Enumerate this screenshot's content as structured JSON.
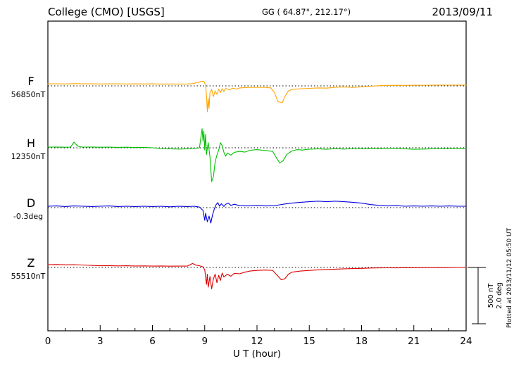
{
  "header": {
    "title": "College (CMO)  [USGS]",
    "coordinates": "GG ( 64.87°, 212.17°)",
    "date": "2013/09/11"
  },
  "axis": {
    "xlabel": "U T (hour)",
    "ticks": [
      0,
      3,
      6,
      9,
      12,
      15,
      18,
      21,
      24
    ],
    "xlim": [
      0,
      24
    ],
    "minor_step": 1
  },
  "scale_bar": {
    "nt_label": "500 nT",
    "deg_label": "2.0 deg",
    "nT": 500,
    "deg": 2.0
  },
  "footer": {
    "plotted_at": "Plotted at 2013/11/12 05:50 UT"
  },
  "chart_data": {
    "type": "line",
    "title": "College (CMO) [USGS] magnetogram 2013/09/11",
    "xlabel": "U T (hour)",
    "xlim": [
      0,
      24
    ],
    "grid": false,
    "legend_position": "left-margin",
    "series": [
      {
        "name": "F",
        "unit": "nT",
        "baseline_label": "56850nT",
        "color": "#FFA500",
        "points": [
          [
            0,
            18
          ],
          [
            0.5,
            19
          ],
          [
            1,
            17
          ],
          [
            1.5,
            20
          ],
          [
            2,
            18
          ],
          [
            2.5,
            19
          ],
          [
            3,
            17
          ],
          [
            3.5,
            18
          ],
          [
            4,
            19
          ],
          [
            4.5,
            17
          ],
          [
            5,
            18
          ],
          [
            5.5,
            17
          ],
          [
            6,
            18
          ],
          [
            6.5,
            16
          ],
          [
            7,
            17
          ],
          [
            7.5,
            16
          ],
          [
            8,
            17
          ],
          [
            8.3,
            20
          ],
          [
            8.6,
            30
          ],
          [
            8.8,
            40
          ],
          [
            8.95,
            42
          ],
          [
            9.05,
            5
          ],
          [
            9.1,
            -80
          ],
          [
            9.15,
            -230
          ],
          [
            9.2,
            -110
          ],
          [
            9.25,
            -200
          ],
          [
            9.3,
            -60
          ],
          [
            9.4,
            -30
          ],
          [
            9.5,
            -95
          ],
          [
            9.6,
            -45
          ],
          [
            9.7,
            -75
          ],
          [
            9.8,
            -30
          ],
          [
            9.9,
            -60
          ],
          [
            10,
            -25
          ],
          [
            10.1,
            -50
          ],
          [
            10.2,
            -22
          ],
          [
            10.4,
            -35
          ],
          [
            10.6,
            -20
          ],
          [
            10.8,
            -28
          ],
          [
            11,
            -18
          ],
          [
            11.5,
            -14
          ],
          [
            12,
            -12
          ],
          [
            12.5,
            -14
          ],
          [
            12.8,
            -18
          ],
          [
            13,
            -60
          ],
          [
            13.2,
            -140
          ],
          [
            13.45,
            -150
          ],
          [
            13.6,
            -95
          ],
          [
            13.8,
            -45
          ],
          [
            14,
            -32
          ],
          [
            14.5,
            -26
          ],
          [
            15,
            -22
          ],
          [
            15.5,
            -18
          ],
          [
            16,
            -20
          ],
          [
            16.5,
            -12
          ],
          [
            17,
            -10
          ],
          [
            17.5,
            -14
          ],
          [
            18,
            -8
          ],
          [
            18.5,
            -3
          ],
          [
            19,
            2
          ],
          [
            19.5,
            4
          ],
          [
            20,
            5
          ],
          [
            20.5,
            4
          ],
          [
            21,
            6
          ],
          [
            21.5,
            5
          ],
          [
            22,
            6
          ],
          [
            22.5,
            7
          ],
          [
            23,
            6
          ],
          [
            23.5,
            7
          ],
          [
            24,
            7
          ]
        ]
      },
      {
        "name": "H",
        "unit": "nT",
        "baseline_label": "12350nT",
        "color": "#00C000",
        "points": [
          [
            0,
            6
          ],
          [
            0.5,
            7
          ],
          [
            1,
            5
          ],
          [
            1.3,
            6
          ],
          [
            1.5,
            50
          ],
          [
            1.65,
            25
          ],
          [
            1.8,
            10
          ],
          [
            2,
            6
          ],
          [
            2.5,
            7
          ],
          [
            3,
            5
          ],
          [
            3.5,
            6
          ],
          [
            4,
            4
          ],
          [
            4.5,
            5
          ],
          [
            5,
            3
          ],
          [
            5.5,
            4
          ],
          [
            6,
            0
          ],
          [
            6.5,
            -6
          ],
          [
            7,
            -9
          ],
          [
            7.5,
            -11
          ],
          [
            8,
            -9
          ],
          [
            8.4,
            -6
          ],
          [
            8.7,
            0
          ],
          [
            8.85,
            170
          ],
          [
            8.9,
            60
          ],
          [
            8.95,
            150
          ],
          [
            9,
            -20
          ],
          [
            9.05,
            120
          ],
          [
            9.1,
            -60
          ],
          [
            9.2,
            45
          ],
          [
            9.3,
            -80
          ],
          [
            9.4,
            -300
          ],
          [
            9.5,
            -255
          ],
          [
            9.6,
            -125
          ],
          [
            9.7,
            -65
          ],
          [
            9.8,
            -20
          ],
          [
            9.9,
            45
          ],
          [
            10,
            20
          ],
          [
            10.1,
            -40
          ],
          [
            10.2,
            -75
          ],
          [
            10.3,
            -45
          ],
          [
            10.5,
            -65
          ],
          [
            10.7,
            -40
          ],
          [
            11,
            -32
          ],
          [
            11.3,
            -38
          ],
          [
            11.6,
            -22
          ],
          [
            12,
            -16
          ],
          [
            12.3,
            -22
          ],
          [
            12.6,
            -26
          ],
          [
            12.9,
            -32
          ],
          [
            13.1,
            -85
          ],
          [
            13.3,
            -135
          ],
          [
            13.5,
            -115
          ],
          [
            13.7,
            -60
          ],
          [
            14,
            -28
          ],
          [
            14.3,
            -16
          ],
          [
            14.6,
            -20
          ],
          [
            15,
            -12
          ],
          [
            15.5,
            -9
          ],
          [
            16,
            -13
          ],
          [
            16.5,
            -7
          ],
          [
            17,
            -11
          ],
          [
            17.5,
            -6
          ],
          [
            18,
            -9
          ],
          [
            18.5,
            -5
          ],
          [
            19,
            -7
          ],
          [
            19.5,
            -4
          ],
          [
            20,
            -6
          ],
          [
            20.5,
            -9
          ],
          [
            21,
            -13
          ],
          [
            21.5,
            -11
          ],
          [
            22,
            -9
          ],
          [
            22.5,
            -6
          ],
          [
            23,
            -7
          ],
          [
            23.5,
            -5
          ],
          [
            24,
            -5
          ]
        ]
      },
      {
        "name": "D",
        "unit": "deg",
        "baseline_label": "-0.3deg",
        "color": "#0000DD",
        "points": [
          [
            0,
            0.05
          ],
          [
            0.5,
            0.06
          ],
          [
            1,
            0.04
          ],
          [
            1.5,
            0.06
          ],
          [
            2,
            0.05
          ],
          [
            2.5,
            0.04
          ],
          [
            3,
            0.05
          ],
          [
            3.5,
            0.06
          ],
          [
            4,
            0.04
          ],
          [
            4.5,
            0.05
          ],
          [
            5,
            0.04
          ],
          [
            5.5,
            0.05
          ],
          [
            6,
            0.04
          ],
          [
            6.5,
            0.05
          ],
          [
            7,
            0.03
          ],
          [
            7.5,
            0.05
          ],
          [
            8,
            0.04
          ],
          [
            8.4,
            0.05
          ],
          [
            8.7,
            0.02
          ],
          [
            8.9,
            -0.1
          ],
          [
            9,
            -0.45
          ],
          [
            9.05,
            -0.2
          ],
          [
            9.15,
            -0.5
          ],
          [
            9.25,
            -0.3
          ],
          [
            9.35,
            -0.55
          ],
          [
            9.45,
            -0.25
          ],
          [
            9.55,
            -0.05
          ],
          [
            9.65,
            0.1
          ],
          [
            9.75,
            0.18
          ],
          [
            9.85,
            0.05
          ],
          [
            9.95,
            0.14
          ],
          [
            10.1,
            0.04
          ],
          [
            10.2,
            0.12
          ],
          [
            10.35,
            0.16
          ],
          [
            10.5,
            0.08
          ],
          [
            10.7,
            0.12
          ],
          [
            11,
            0.07
          ],
          [
            11.5,
            0.06
          ],
          [
            12,
            0.08
          ],
          [
            12.5,
            0.06
          ],
          [
            13,
            0.07
          ],
          [
            13.3,
            0.1
          ],
          [
            13.6,
            0.13
          ],
          [
            14,
            0.16
          ],
          [
            14.5,
            0.19
          ],
          [
            15,
            0.21
          ],
          [
            15.5,
            0.23
          ],
          [
            16,
            0.21
          ],
          [
            16.5,
            0.23
          ],
          [
            17,
            0.21
          ],
          [
            17.5,
            0.19
          ],
          [
            18,
            0.16
          ],
          [
            18.5,
            0.11
          ],
          [
            19,
            0.08
          ],
          [
            19.5,
            0.06
          ],
          [
            20,
            0.07
          ],
          [
            20.5,
            0.05
          ],
          [
            21,
            0.06
          ],
          [
            21.5,
            0.05
          ],
          [
            22,
            0.06
          ],
          [
            22.5,
            0.05
          ],
          [
            23,
            0.06
          ],
          [
            23.5,
            0.05
          ],
          [
            24,
            0.05
          ]
        ]
      },
      {
        "name": "Z",
        "unit": "nT",
        "baseline_label": "55510nT",
        "color": "#DD0000",
        "points": [
          [
            0,
            25
          ],
          [
            0.5,
            26
          ],
          [
            1,
            24
          ],
          [
            1.5,
            25
          ],
          [
            2,
            22
          ],
          [
            2.5,
            18
          ],
          [
            3,
            15
          ],
          [
            3.5,
            16
          ],
          [
            4,
            14
          ],
          [
            4.5,
            15
          ],
          [
            5,
            13
          ],
          [
            5.5,
            14
          ],
          [
            6,
            12
          ],
          [
            6.5,
            13
          ],
          [
            7,
            11
          ],
          [
            7.5,
            12
          ],
          [
            8,
            12
          ],
          [
            8.3,
            35
          ],
          [
            8.5,
            20
          ],
          [
            8.7,
            15
          ],
          [
            8.9,
            5
          ],
          [
            9,
            -20
          ],
          [
            9.1,
            -150
          ],
          [
            9.15,
            -60
          ],
          [
            9.2,
            -175
          ],
          [
            9.3,
            -80
          ],
          [
            9.4,
            -190
          ],
          [
            9.5,
            -100
          ],
          [
            9.6,
            -60
          ],
          [
            9.7,
            -135
          ],
          [
            9.8,
            -70
          ],
          [
            9.9,
            -115
          ],
          [
            10,
            -50
          ],
          [
            10.1,
            -85
          ],
          [
            10.3,
            -60
          ],
          [
            10.5,
            -78
          ],
          [
            10.7,
            -52
          ],
          [
            11,
            -56
          ],
          [
            11.3,
            -42
          ],
          [
            11.6,
            -32
          ],
          [
            12,
            -26
          ],
          [
            12.5,
            -23
          ],
          [
            12.9,
            -26
          ],
          [
            13.1,
            -60
          ],
          [
            13.4,
            -110
          ],
          [
            13.6,
            -100
          ],
          [
            13.8,
            -60
          ],
          [
            14,
            -42
          ],
          [
            14.5,
            -32
          ],
          [
            15,
            -26
          ],
          [
            15.5,
            -21
          ],
          [
            16,
            -18
          ],
          [
            16.5,
            -15
          ],
          [
            17,
            -12
          ],
          [
            17.5,
            -10
          ],
          [
            18,
            -8
          ],
          [
            18.5,
            -5
          ],
          [
            19,
            -4
          ],
          [
            19.5,
            -3
          ],
          [
            20,
            -4
          ],
          [
            20.5,
            -2
          ],
          [
            21,
            -3
          ],
          [
            21.5,
            -2
          ],
          [
            22,
            -1
          ],
          [
            22.5,
            -2
          ],
          [
            23,
            -1
          ],
          [
            23.5,
            0
          ],
          [
            24,
            0
          ]
        ]
      }
    ]
  }
}
